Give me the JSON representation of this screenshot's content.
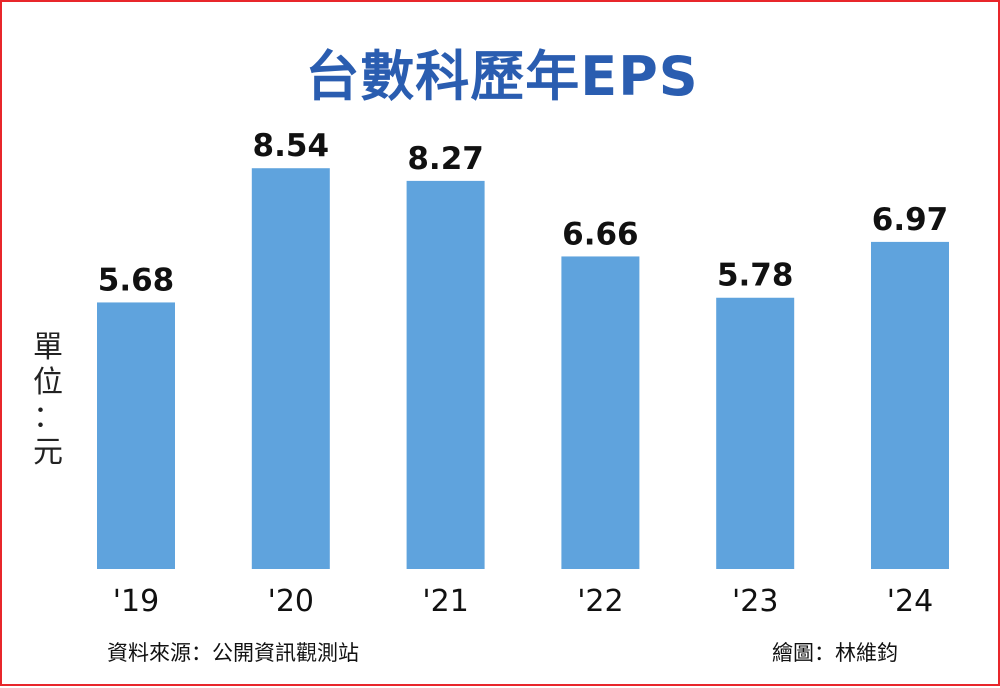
{
  "title": "台數科歷年EPS",
  "y_unit_chars": [
    "單",
    "位",
    "：",
    "元"
  ],
  "source_note": "資料來源：公開資訊觀測站",
  "credit_note": "繪圖：林維鈞",
  "colors": {
    "bar": "#5fa3dd",
    "title": "#2a5db0",
    "border": "#e8262b",
    "label": "#111111"
  },
  "chart_data": {
    "type": "bar",
    "title": "台數科歷年EPS",
    "ylabel": "單位：元",
    "xlabel": "",
    "categories": [
      "'19",
      "'20",
      "'21",
      "'22",
      "'23",
      "'24"
    ],
    "values": [
      5.68,
      8.54,
      8.27,
      6.66,
      5.78,
      6.97
    ],
    "value_labels": [
      "5.68",
      "8.54",
      "8.27",
      "6.66",
      "5.78",
      "6.97"
    ],
    "ylim": [
      0,
      9.2
    ],
    "grid": false,
    "legend": "none"
  }
}
